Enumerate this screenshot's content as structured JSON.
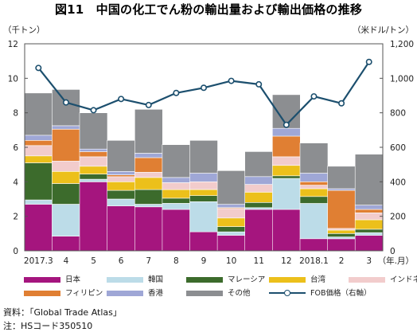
{
  "title": "図11　中国の化工でん粉の輸出量および輸出価格の推移",
  "unit_left": "（千トン）",
  "unit_right": "（米ドル/トン）",
  "x_unit": "（年.月）",
  "source": "資料：「Global Trade Atlas」",
  "note": "注：HSコード350510",
  "chart_data": {
    "type": "bar",
    "stacked": true,
    "categories": [
      "2017.3",
      "4",
      "5",
      "6",
      "7",
      "8",
      "9",
      "10",
      "11",
      "12",
      "2018.1",
      "2",
      "3"
    ],
    "ylim": [
      0,
      12
    ],
    "yticks": [
      0,
      2,
      4,
      6,
      8,
      10,
      12
    ],
    "y2lim": [
      0,
      1200
    ],
    "y2ticks": [
      "0",
      "200",
      "400",
      "600",
      "800",
      "1,000",
      "1,200"
    ],
    "grid": false,
    "legend_position": "bottom",
    "series": [
      {
        "name": "日本",
        "color": "#a5157e",
        "values": [
          2.7,
          0.85,
          4.0,
          2.6,
          2.55,
          2.4,
          1.1,
          0.9,
          2.4,
          2.4,
          0.7,
          0.7,
          0.9
        ]
      },
      {
        "name": "韓国",
        "color": "#bcdce8",
        "values": [
          0.25,
          1.85,
          0.15,
          0.4,
          0.15,
          0.35,
          1.75,
          0.2,
          0.1,
          1.8,
          2.05,
          0.1,
          0.15
        ]
      },
      {
        "name": "マレーシア",
        "color": "#3c6b2c",
        "values": [
          2.15,
          1.2,
          0.3,
          0.5,
          0.85,
          0.3,
          0.35,
          0.3,
          0.3,
          0.15,
          0.4,
          0.2,
          0.2
        ]
      },
      {
        "name": "台湾",
        "color": "#ecc01b",
        "values": [
          0.4,
          0.7,
          0.45,
          0.5,
          0.7,
          0.5,
          0.35,
          0.5,
          0.6,
          0.6,
          0.45,
          0.2,
          0.55
        ]
      },
      {
        "name": "インドネシア",
        "color": "#f2cccc",
        "values": [
          0.6,
          0.6,
          0.55,
          0.3,
          0.3,
          0.4,
          0.45,
          0.55,
          0.45,
          0.5,
          0.2,
          0.1,
          0.4
        ]
      },
      {
        "name": "フィリピン",
        "color": "#e07f33",
        "values": [
          0.3,
          1.85,
          0.3,
          0.1,
          0.85,
          0.0,
          0.0,
          0.05,
          0.0,
          1.2,
          0.2,
          2.2,
          0.2
        ]
      },
      {
        "name": "香港",
        "color": "#9fa7d6",
        "values": [
          0.3,
          0.2,
          0.15,
          0.2,
          0.25,
          0.3,
          0.5,
          0.2,
          0.45,
          0.45,
          0.5,
          0.1,
          0.25
        ]
      },
      {
        "name": "その他",
        "color": "#8c8e91",
        "values": [
          2.45,
          2.1,
          2.1,
          1.8,
          2.55,
          1.9,
          1.9,
          1.95,
          1.45,
          1.95,
          1.75,
          1.3,
          2.95
        ]
      }
    ],
    "line": {
      "name": "FOB価格（右軸）",
      "axis": "right",
      "color": "#1c4f6e",
      "values": [
        1060,
        860,
        815,
        880,
        845,
        915,
        945,
        985,
        965,
        730,
        895,
        855,
        1095
      ]
    }
  }
}
